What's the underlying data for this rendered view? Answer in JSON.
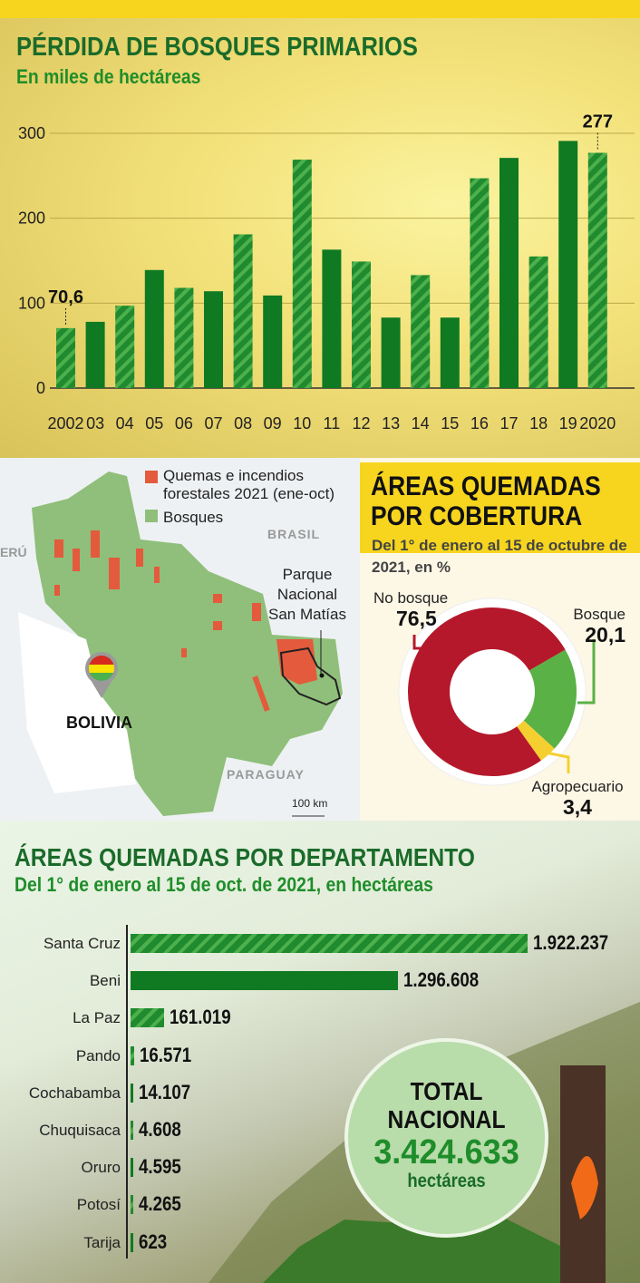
{
  "chart_data": [
    {
      "type": "bar",
      "title": "PÉRDIDA DE BOSQUES PRIMARIOS",
      "subtitle": "En miles de hectáreas",
      "xlabel": "",
      "ylabel": "",
      "ylim": [
        0,
        300
      ],
      "yticks": [
        0,
        100,
        200,
        300
      ],
      "categories": [
        "2002",
        "03",
        "04",
        "05",
        "06",
        "07",
        "08",
        "09",
        "10",
        "11",
        "12",
        "13",
        "14",
        "15",
        "16",
        "17",
        "18",
        "19",
        "2020"
      ],
      "values": [
        70.6,
        78,
        97,
        139,
        118,
        114,
        181,
        109,
        269,
        163,
        149,
        83,
        133,
        83,
        247,
        271,
        155,
        291,
        277
      ],
      "annotations": [
        {
          "x": "2002",
          "label": "70,6"
        },
        {
          "x": "2020",
          "label": "277"
        }
      ],
      "grid": true
    },
    {
      "type": "pie",
      "title": "ÁREAS QUEMADAS POR COBERTURA",
      "subtitle": "Del 1° de enero al 15 de octubre de 2021, en %",
      "slices": [
        {
          "name": "No bosque",
          "value": 76.5,
          "label": "76,5",
          "color": "#b5182b"
        },
        {
          "name": "Bosque",
          "value": 20.1,
          "label": "20,1",
          "color": "#5ab146"
        },
        {
          "name": "Agropecuario",
          "value": 3.4,
          "label": "3,4",
          "color": "#f5cf2f"
        }
      ]
    },
    {
      "type": "bar",
      "orientation": "horizontal",
      "title": "ÁREAS QUEMADAS POR DEPARTAMENTO",
      "subtitle": "Del 1° de enero al 15 de oct. de 2021, en hectáreas",
      "categories": [
        "Santa Cruz",
        "Beni",
        "La Paz",
        "Pando",
        "Cochabamba",
        "Chuquisaca",
        "Oruro",
        "Potosí",
        "Tarija"
      ],
      "values": [
        1922237,
        1296608,
        161019,
        16571,
        14107,
        4608,
        4595,
        4265,
        623
      ],
      "labels": [
        "1.922.237",
        "1.296.608",
        "161.019",
        "16.571",
        "14.107",
        "4.608",
        "4.595",
        "4.265",
        "623"
      ]
    }
  ],
  "map": {
    "legend": [
      {
        "label": "Quemas e incendios forestales 2021 (ene-oct)",
        "line1": "Quemas e incendios",
        "line2": "forestales 2021 (ene-oct)",
        "color": "#e45a3c"
      },
      {
        "label": "Bosques",
        "color": "#8fbf7a"
      }
    ],
    "countries": {
      "brasil": "BRASIL",
      "peru": "ERÚ",
      "paraguay": "PARAGUAY",
      "bolivia": "BOLIVIA"
    },
    "park": {
      "l1": "Parque",
      "l2": "Nacional",
      "l3": "San Matías"
    },
    "scale": "100 km"
  },
  "total": {
    "l1": "TOTAL",
    "l2": "NACIONAL",
    "value": "3.424.633",
    "unit": "hectáreas"
  },
  "colors": {
    "dark_green": "#0f7a22",
    "light_green": "#4cb04c",
    "yellow": "#f7d51e"
  }
}
